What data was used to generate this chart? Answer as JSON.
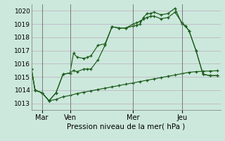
{
  "xlabel": "Pression niveau de la mer( hPa )",
  "ylim": [
    1012.5,
    1020.5
  ],
  "xlim": [
    0,
    27
  ],
  "yticks": [
    1013,
    1014,
    1015,
    1016,
    1017,
    1018,
    1019,
    1020
  ],
  "xtick_positions": [
    1.5,
    5.5,
    14.5,
    21.5
  ],
  "xtick_labels": [
    "Mar",
    "Ven",
    "Mer",
    "Jeu"
  ],
  "vlines": [
    1.5,
    5.5,
    14.5,
    21.5
  ],
  "background_color": "#cce8dc",
  "grid_color": "#b8aec0",
  "line_color": "#1a5c1a",
  "line1_x": [
    0.0,
    0.5,
    1.5,
    2.5,
    3.5,
    4.5,
    5.5,
    6.0,
    6.5,
    7.5,
    8.0,
    8.5,
    9.5,
    10.5,
    11.5,
    12.5,
    13.5,
    14.5,
    15.0,
    15.5,
    16.0,
    16.5,
    17.0,
    17.5,
    18.5,
    19.5,
    20.5,
    21.5,
    22.0,
    22.5,
    23.5,
    24.5,
    25.5,
    26.5
  ],
  "line1_y": [
    1015.6,
    1014.0,
    1013.8,
    1013.2,
    1013.8,
    1015.2,
    1015.3,
    1016.8,
    1016.5,
    1016.4,
    1016.5,
    1016.6,
    1017.4,
    1017.5,
    1018.8,
    1018.7,
    1018.7,
    1018.85,
    1018.9,
    1019.0,
    1019.5,
    1019.8,
    1019.8,
    1019.9,
    1019.7,
    1019.8,
    1020.2,
    1019.0,
    1018.85,
    1018.5,
    1017.0,
    1015.2,
    1015.1,
    1015.1
  ],
  "line2_x": [
    0.0,
    0.5,
    1.5,
    2.5,
    3.5,
    4.5,
    5.5,
    6.0,
    6.5,
    7.5,
    8.0,
    8.5,
    9.5,
    10.5,
    11.5,
    12.5,
    13.5,
    14.5,
    15.0,
    15.5,
    16.0,
    16.5,
    17.0,
    17.5,
    18.5,
    19.5,
    20.5,
    21.5,
    22.0,
    22.5,
    23.5,
    24.5,
    25.5,
    26.5
  ],
  "line2_y": [
    1015.6,
    1014.0,
    1013.8,
    1013.2,
    1013.8,
    1015.2,
    1015.3,
    1015.5,
    1015.4,
    1015.6,
    1015.6,
    1015.6,
    1016.3,
    1017.4,
    1018.8,
    1018.7,
    1018.7,
    1019.0,
    1019.1,
    1019.2,
    1019.4,
    1019.5,
    1019.6,
    1019.6,
    1019.4,
    1019.5,
    1019.9,
    1019.1,
    1018.85,
    1018.5,
    1017.0,
    1015.2,
    1015.1,
    1015.1
  ],
  "line3_x": [
    0.0,
    0.5,
    1.5,
    2.5,
    3.5,
    4.5,
    5.5,
    6.5,
    7.5,
    8.5,
    9.5,
    10.5,
    11.5,
    12.5,
    13.5,
    14.5,
    15.5,
    16.5,
    17.5,
    18.5,
    19.5,
    20.5,
    21.5,
    22.5,
    23.5,
    24.5,
    25.5,
    26.5
  ],
  "line3_y": [
    1015.6,
    1014.0,
    1013.8,
    1013.2,
    1013.3,
    1013.5,
    1013.6,
    1013.75,
    1013.85,
    1013.95,
    1014.05,
    1014.15,
    1014.25,
    1014.35,
    1014.45,
    1014.55,
    1014.65,
    1014.75,
    1014.85,
    1014.95,
    1015.05,
    1015.15,
    1015.25,
    1015.35,
    1015.4,
    1015.43,
    1015.45,
    1015.47
  ]
}
